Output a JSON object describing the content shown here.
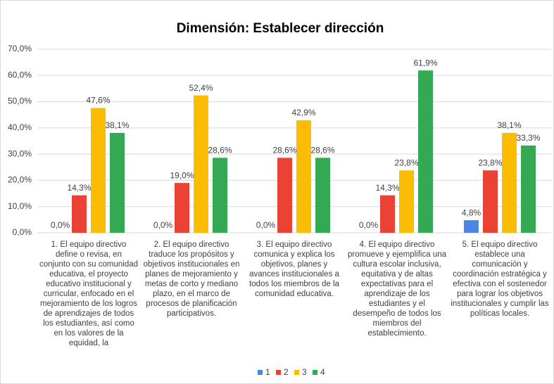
{
  "chart_data": {
    "type": "bar",
    "title": "Dimensión: Establecer dirección",
    "categories": [
      "1. El equipo directivo define o revisa, en conjunto con su comunidad educativa, el proyecto educativo institucional y curricular, enfocado en el mejoramiento de los logros de aprendizajes de todos los estudiantes, así como en los valores de la equidad, la",
      "2. El equipo directivo traduce los propósitos y objetivos institucionales en planes de mejoramiento y metas de corto y mediano plazo, en el marco de procesos de planificación participativos.",
      "3. El equipo directivo comunica y explica los objetivos, planes y avances institucionales a todos los miembros de la comunidad educativa.",
      "4. El equipo directivo promueve y ejemplifica una cultura escolar inclusiva, equitativa y de altas expectativas para el aprendizaje de los estudiantes y el desempeño de todos los miembros del establecimiento.",
      "5. El equipo directivo establece una comunicación y coordinación estratégica y efectiva con el sostenedor para lograr los objetivos institucionales y cumplir las políticas locales."
    ],
    "series": [
      {
        "name": "1",
        "color": "#4a86e8",
        "values": [
          0,
          0,
          0,
          0,
          4.8
        ],
        "value_labels": [
          "0,0%",
          "0,0%",
          "0,0%",
          "0,0%",
          "4,8%"
        ]
      },
      {
        "name": "2",
        "color": "#ea4335",
        "values": [
          14.3,
          19.0,
          28.6,
          14.3,
          23.8
        ],
        "value_labels": [
          "14,3%",
          "19,0%",
          "28,6%",
          "14,3%",
          "23,8%"
        ]
      },
      {
        "name": "3",
        "color": "#fbbc04",
        "values": [
          47.6,
          52.4,
          42.9,
          23.8,
          38.1
        ],
        "value_labels": [
          "47,6%",
          "52,4%",
          "42,9%",
          "23,8%",
          "38,1%"
        ]
      },
      {
        "name": "4",
        "color": "#34a853",
        "values": [
          38.1,
          28.6,
          28.6,
          61.9,
          33.3
        ],
        "value_labels": [
          "38,1%",
          "28,6%",
          "28,6%",
          "61,9%",
          "33,3%"
        ]
      }
    ],
    "ylim": [
      0,
      70
    ],
    "yticks": [
      {
        "value": 0,
        "label": "0,0%"
      },
      {
        "value": 10,
        "label": "10,0%"
      },
      {
        "value": 20,
        "label": "20,0%"
      },
      {
        "value": 30,
        "label": "30,0%"
      },
      {
        "value": 40,
        "label": "40,0%"
      },
      {
        "value": 50,
        "label": "50,0%"
      },
      {
        "value": 60,
        "label": "60,0%"
      },
      {
        "value": 70,
        "label": "70,0%"
      }
    ],
    "grid": true,
    "legend": "bottom"
  }
}
